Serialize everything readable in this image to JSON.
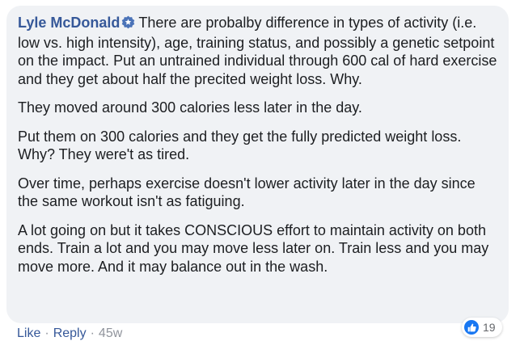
{
  "comment": {
    "author": "Lyle McDonald",
    "badge_icon": "top-fan-badge-icon",
    "paragraphs": [
      "There are probalby difference in types of activity (i.e. low vs. high intensity), age, training status, and possibly a genetic setpoint on the impact. Put an untrained individual through 600 cal of hard exercise and they get about half the precited weight loss. Why.",
      "They moved around 300 calories less later in the day.",
      "Put them on 300 calories and they get the fully predicted weight loss. Why? They were't as tired.",
      "Over time, perhaps exercise doesn't lower activity later in the day since the same workout isn't as fatiguing.",
      "A lot going on but it takes CONSCIOUS effort to maintain activity on both ends. Train a lot and you may move less later on. Train less and you may move more. And it may balance out in the wash."
    ]
  },
  "actions": {
    "like_label": "Like",
    "separator": "·",
    "reply_label": "Reply",
    "timestamp": "45w"
  },
  "reactions": {
    "icon": "thumbs-up-icon",
    "count": "19"
  },
  "colors": {
    "bubble": "#f0f2f5",
    "author": "#365899",
    "text": "#1c1e21",
    "meta": "#90949c",
    "like_blue": "#1877f2"
  }
}
